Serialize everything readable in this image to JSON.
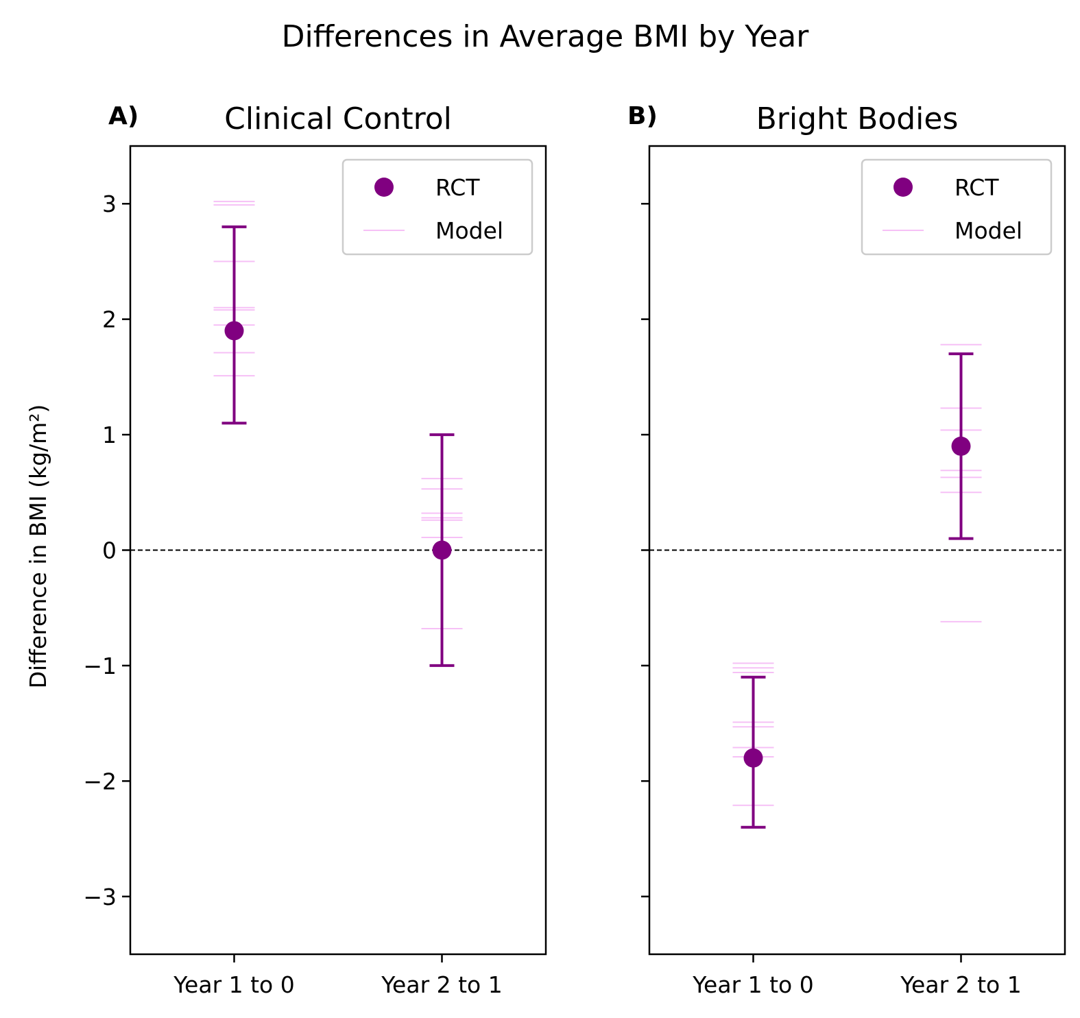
{
  "figure_title": "Differences in Average BMI by Year",
  "ylabel": "Difference in BMI (kg/m²)",
  "chart_data": [
    {
      "type": "scatter",
      "panel_label": "A)",
      "title": "Clinical Control",
      "categories": [
        "Year 1 to 0",
        "Year 2 to 1"
      ],
      "ylim": [
        -3.5,
        3.5
      ],
      "yticks": [
        -3,
        -2,
        -1,
        0,
        1,
        2,
        3
      ],
      "ytick_labels": [
        "−3",
        "−2",
        "−1",
        "0",
        "1",
        "2",
        "3"
      ],
      "reference_line_y": 0,
      "legend": {
        "placement": "top-right",
        "entries": [
          "RCT",
          "Model"
        ]
      },
      "rct": [
        {
          "category": "Year 1 to 0",
          "mean": 1.9,
          "lower": 1.1,
          "upper": 2.8
        },
        {
          "category": "Year 2 to 1",
          "mean": 0.0,
          "lower": -1.0,
          "upper": 1.0
        }
      ],
      "model": [
        {
          "category": "Year 1 to 0",
          "values": [
            3.02,
            2.99,
            2.5,
            2.1,
            2.08,
            1.95,
            1.71,
            1.51
          ]
        },
        {
          "category": "Year 2 to 1",
          "values": [
            0.62,
            0.53,
            0.32,
            0.28,
            0.26,
            0.11,
            -0.68
          ]
        }
      ]
    },
    {
      "type": "scatter",
      "panel_label": "B)",
      "title": "Bright Bodies",
      "categories": [
        "Year 1 to 0",
        "Year 2 to 1"
      ],
      "ylim": [
        -3.5,
        3.5
      ],
      "yticks": [
        -3,
        -2,
        -1,
        0,
        1,
        2,
        3
      ],
      "ytick_labels": [],
      "reference_line_y": 0,
      "legend": {
        "placement": "top-right",
        "entries": [
          "RCT",
          "Model"
        ]
      },
      "rct": [
        {
          "category": "Year 1 to 0",
          "mean": -1.8,
          "lower": -2.4,
          "upper": -1.1
        },
        {
          "category": "Year 2 to 1",
          "mean": 0.9,
          "lower": 0.1,
          "upper": 1.7
        }
      ],
      "model": [
        {
          "category": "Year 1 to 0",
          "values": [
            -0.98,
            -1.02,
            -1.06,
            -1.49,
            -1.53,
            -1.71,
            -1.79,
            -2.21
          ]
        },
        {
          "category": "Year 2 to 1",
          "values": [
            1.78,
            1.23,
            1.04,
            0.69,
            0.63,
            0.5,
            -0.62
          ]
        }
      ]
    }
  ],
  "colors": {
    "rct": "#800080",
    "model": "#ee82ee",
    "axes": "#000000"
  }
}
